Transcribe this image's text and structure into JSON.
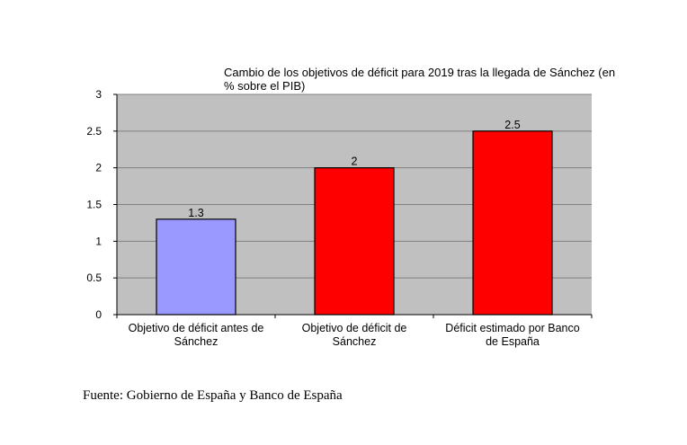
{
  "chart_data": {
    "type": "bar",
    "title_lines": [
      "Cambio de los objetivos de déficit para 2019 tras la llegada de Sánchez (en",
      "% sobre el PIB)"
    ],
    "categories": [
      [
        "Objetivo de déficit antes de",
        "Sánchez"
      ],
      [
        "Objetivo de déficit de",
        "Sánchez"
      ],
      [
        "Déficit estimado por Banco",
        "de España"
      ]
    ],
    "values": [
      1.3,
      2,
      2.5
    ],
    "value_labels": [
      "1.3",
      "2",
      "2.5"
    ],
    "bar_colors": [
      "#9999ff",
      "#ff0000",
      "#ff0000"
    ],
    "plot_background": "#c0c0c0",
    "gridline_color": "#808080",
    "ylim": [
      0,
      3
    ],
    "yticks": [
      0,
      0.5,
      1,
      1.5,
      2,
      2.5,
      3
    ],
    "ytick_labels": [
      "0",
      "0.5",
      "1",
      "1.5",
      "2",
      "2.5",
      "3"
    ],
    "grid": true,
    "legend": "none"
  },
  "source": "Fuente: Gobierno de España y Banco de España"
}
